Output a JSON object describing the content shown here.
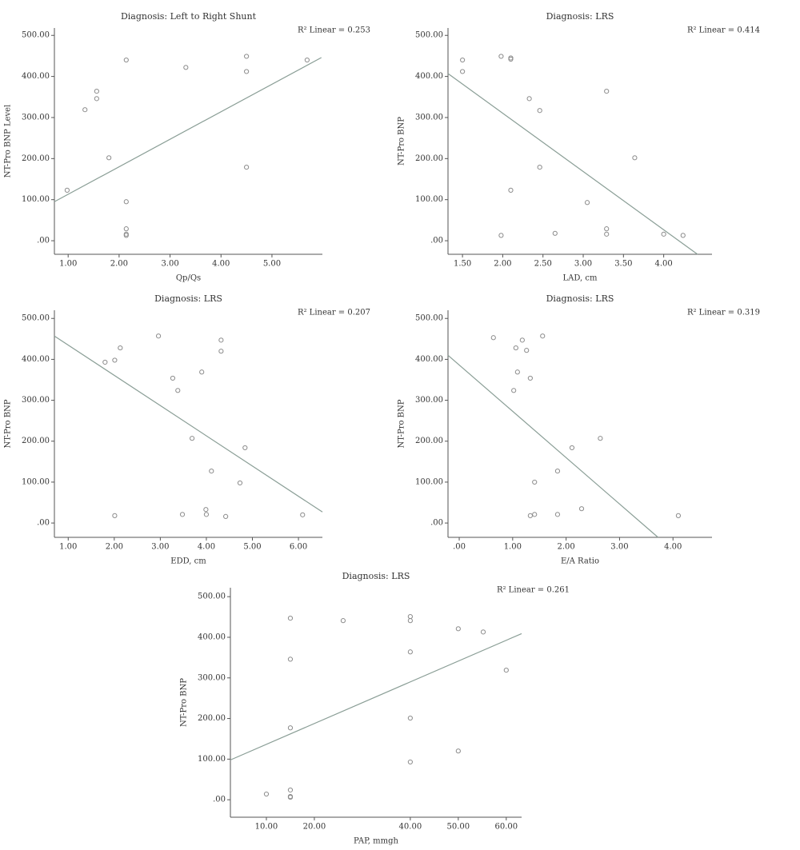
{
  "chart_data": [
    {
      "type": "scatter",
      "title": "Diagnosis: Left to Right Shunt",
      "annotation": "R² Linear = 0.253",
      "xlabel": "Qp/Qs",
      "ylabel": "NT-Pro BNP Level",
      "color": "#8c8c8c",
      "fit_color": "#8a9e96",
      "x": [
        0.98,
        1.33,
        1.56,
        1.56,
        1.8,
        2.14,
        2.14,
        2.14,
        2.14,
        2.14,
        3.31,
        4.5,
        4.5,
        4.5,
        5.69
      ],
      "y": [
        123,
        319,
        364,
        346,
        202,
        440,
        95,
        29,
        16,
        13,
        422,
        449,
        412,
        179,
        440
      ],
      "fit_line": {
        "x": [
          0.73,
          5.97
        ],
        "y": [
          95,
          446
        ]
      },
      "xlim": [
        0.73,
        5.99
      ],
      "ylim": [
        -33,
        518
      ],
      "xticks": [
        {
          "value": 1,
          "label": "1.00"
        },
        {
          "value": 2,
          "label": "2.00"
        },
        {
          "value": 3,
          "label": "3.00"
        },
        {
          "value": 4,
          "label": "4.00"
        },
        {
          "value": 5,
          "label": "5.00"
        }
      ],
      "yticks": [
        {
          "value": 0,
          "label": ".00"
        },
        {
          "value": 100,
          "label": "100.00"
        },
        {
          "value": 200,
          "label": "200.00"
        },
        {
          "value": 300,
          "label": "300.00"
        },
        {
          "value": 400,
          "label": "400.00"
        },
        {
          "value": 500,
          "label": "500.00"
        }
      ]
    },
    {
      "type": "scatter",
      "title": "Diagnosis: LRS",
      "annotation": "R² Linear = 0.414",
      "xlabel": "LAD, cm",
      "ylabel": "NT-Pro BNP",
      "color": "#8c8c8c",
      "fit_color": "#8a9e96",
      "x": [
        1.5,
        1.5,
        1.98,
        1.98,
        2.1,
        2.1,
        2.1,
        2.33,
        2.46,
        2.46,
        2.65,
        3.05,
        3.29,
        3.29,
        3.29,
        3.64,
        4.0,
        4.24
      ],
      "y": [
        440,
        412,
        449,
        13,
        445,
        442,
        123,
        346,
        317,
        179,
        18,
        93,
        364,
        29,
        16,
        202,
        16,
        13
      ],
      "fit_line": {
        "x": [
          1.32,
          4.42
        ],
        "y": [
          407,
          -33
        ]
      },
      "xlim": [
        1.32,
        4.6
      ],
      "ylim": [
        -33,
        518
      ],
      "xticks": [
        {
          "value": 1.5,
          "label": "1.50"
        },
        {
          "value": 2,
          "label": "2.00"
        },
        {
          "value": 2.5,
          "label": "2.50"
        },
        {
          "value": 3,
          "label": "3.00"
        },
        {
          "value": 3.5,
          "label": "3.50"
        },
        {
          "value": 4,
          "label": "4.00"
        }
      ],
      "yticks": [
        {
          "value": 0,
          "label": ".00"
        },
        {
          "value": 100,
          "label": "100.00"
        },
        {
          "value": 200,
          "label": "200.00"
        },
        {
          "value": 300,
          "label": "300.00"
        },
        {
          "value": 400,
          "label": "400.00"
        },
        {
          "value": 500,
          "label": "500.00"
        }
      ]
    },
    {
      "type": "scatter",
      "title": "Diagnosis: LRS",
      "annotation": "R² Linear = 0.207",
      "xlabel": "EDD, cm",
      "ylabel": "NT-Pro BNP",
      "color": "#8c8c8c",
      "fit_color": "#8a9e96",
      "x": [
        1.8,
        2.01,
        2.13,
        2.96,
        3.27,
        3.38,
        3.69,
        3.9,
        4.11,
        3.99,
        4.0,
        4.32,
        4.32,
        4.42,
        4.73,
        4.84,
        2.01,
        3.48,
        6.09
      ],
      "y": [
        393,
        398,
        428,
        457,
        354,
        324,
        207,
        369,
        127,
        33,
        21,
        447,
        420,
        16,
        98,
        184,
        18,
        21,
        20
      ],
      "fit_line": {
        "x": [
          0.7,
          6.52
        ],
        "y": [
          457,
          27
        ]
      },
      "xlim": [
        0.7,
        6.52
      ],
      "ylim": [
        -35,
        520
      ],
      "xticks": [
        {
          "value": 1,
          "label": "1.00"
        },
        {
          "value": 2,
          "label": "2.00"
        },
        {
          "value": 3,
          "label": "3.00"
        },
        {
          "value": 4,
          "label": "4.00"
        },
        {
          "value": 5,
          "label": "5.00"
        },
        {
          "value": 6,
          "label": "6.00"
        }
      ],
      "yticks": [
        {
          "value": 0,
          "label": ".00"
        },
        {
          "value": 100,
          "label": "100.00"
        },
        {
          "value": 200,
          "label": "200.00"
        },
        {
          "value": 300,
          "label": "300.00"
        },
        {
          "value": 400,
          "label": "400.00"
        },
        {
          "value": 500,
          "label": "500.00"
        }
      ]
    },
    {
      "type": "scatter",
      "title": "Diagnosis: LRS",
      "annotation": "R² Linear = 0.319",
      "xlabel": "E/A Ratio",
      "ylabel": "NT-Pro BNP",
      "color": "#8c8c8c",
      "fit_color": "#8a9e96",
      "x": [
        0.64,
        1.06,
        1.09,
        1.02,
        1.18,
        1.26,
        1.33,
        1.56,
        1.41,
        1.33,
        1.41,
        1.84,
        2.11,
        2.29,
        2.64,
        1.84,
        4.1
      ],
      "y": [
        453,
        428,
        369,
        324,
        447,
        422,
        354,
        457,
        100,
        18,
        21,
        127,
        184,
        35,
        207,
        21,
        18
      ],
      "fit_line": {
        "x": [
          -0.21,
          3.72
        ],
        "y": [
          410,
          -35
        ]
      },
      "xlim": [
        -0.21,
        4.73
      ],
      "ylim": [
        -35,
        520
      ],
      "xticks": [
        {
          "value": 0,
          "label": ".00"
        },
        {
          "value": 1,
          "label": "1.00"
        },
        {
          "value": 2,
          "label": "2.00"
        },
        {
          "value": 3,
          "label": "3.00"
        },
        {
          "value": 4,
          "label": "4.00"
        }
      ],
      "yticks": [
        {
          "value": 0,
          "label": ".00"
        },
        {
          "value": 100,
          "label": "100.00"
        },
        {
          "value": 200,
          "label": "200.00"
        },
        {
          "value": 300,
          "label": "300.00"
        },
        {
          "value": 400,
          "label": "400.00"
        },
        {
          "value": 500,
          "label": "500.00"
        }
      ]
    },
    {
      "type": "scatter",
      "title": "Diagnosis: LRS",
      "annotation": "R² Linear = 0.261",
      "xlabel": "PAP, mmgh",
      "ylabel": "NT-Pro BNP",
      "color": "#8c8c8c",
      "fit_color": "#8a9e96",
      "x": [
        10,
        15,
        15,
        15,
        15,
        15,
        15,
        26,
        40,
        40,
        40,
        40,
        40,
        50,
        50,
        55.2,
        60
      ],
      "y": [
        14,
        447,
        346,
        177,
        24,
        8,
        6,
        441,
        451,
        441,
        364,
        201,
        93,
        421,
        120,
        413,
        319
      ],
      "fit_line": {
        "x": [
          2.5,
          63.2
        ],
        "y": [
          98,
          409
        ]
      },
      "xlim": [
        2.5,
        63.2
      ],
      "ylim": [
        -43,
        522
      ],
      "xticks": [
        {
          "value": 10,
          "label": "10.00"
        },
        {
          "value": 20,
          "label": "20.00"
        },
        {
          "value": 40,
          "label": "40.00"
        },
        {
          "value": 50,
          "label": "50.00"
        },
        {
          "value": 60,
          "label": "60.00"
        }
      ],
      "yticks": [
        {
          "value": 0,
          "label": ".00"
        },
        {
          "value": 100,
          "label": "100.00"
        },
        {
          "value": 200,
          "label": "200.00"
        },
        {
          "value": 300,
          "label": "300.00"
        },
        {
          "value": 400,
          "label": "400.00"
        },
        {
          "value": 500,
          "label": "500.00"
        }
      ]
    }
  ]
}
